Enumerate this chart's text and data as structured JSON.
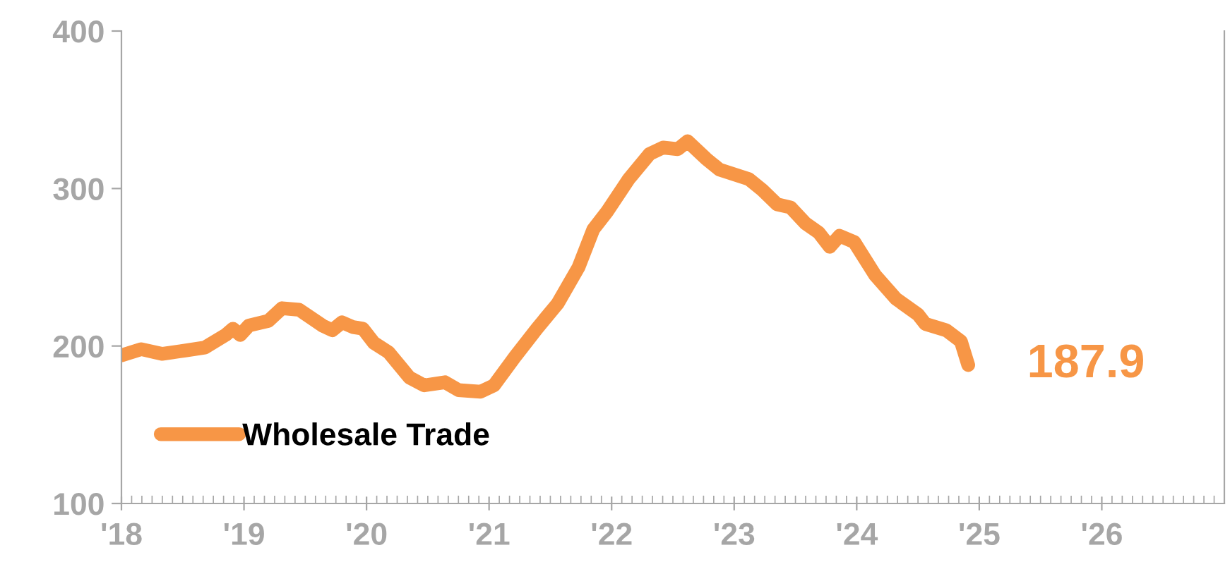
{
  "chart_data": {
    "type": "line",
    "xlim": [
      2018,
      2027
    ],
    "ylim": [
      100,
      400
    ],
    "xticks": [
      {
        "value": 2018,
        "label": "'18"
      },
      {
        "value": 2019,
        "label": "'19"
      },
      {
        "value": 2020,
        "label": "'20"
      },
      {
        "value": 2021,
        "label": "'21"
      },
      {
        "value": 2022,
        "label": "'22"
      },
      {
        "value": 2023,
        "label": "'23"
      },
      {
        "value": 2024,
        "label": "'24"
      },
      {
        "value": 2025,
        "label": "'25"
      },
      {
        "value": 2026,
        "label": "'26"
      }
    ],
    "yticks": [
      100,
      200,
      300,
      400
    ],
    "grid": false,
    "legend": "bottom left",
    "marker": "none",
    "line_style": "solid",
    "annotations": [
      {
        "text": "187.9",
        "x": 2024.91,
        "y": 187.9
      }
    ],
    "series": [
      {
        "name": "Wholesale Trade",
        "color": "#f79646",
        "x": [
          2018.0,
          2018.16,
          2018.33,
          2018.51,
          2018.68,
          2018.85,
          2018.91,
          2018.97,
          2019.04,
          2019.2,
          2019.31,
          2019.45,
          2019.64,
          2019.72,
          2019.8,
          2019.89,
          2019.97,
          2020.06,
          2020.18,
          2020.35,
          2020.47,
          2020.64,
          2020.75,
          2020.93,
          2021.04,
          2021.21,
          2021.39,
          2021.56,
          2021.73,
          2021.85,
          2021.96,
          2022.14,
          2022.31,
          2022.42,
          2022.54,
          2022.62,
          2022.77,
          2022.88,
          2023.12,
          2023.23,
          2023.35,
          2023.46,
          2023.58,
          2023.69,
          2023.78,
          2023.86,
          2023.98,
          2024.15,
          2024.32,
          2024.5,
          2024.56,
          2024.73,
          2024.85,
          2024.91
        ],
        "values": [
          194,
          198,
          195,
          197,
          199,
          207,
          211,
          207,
          213,
          216,
          224,
          223,
          213,
          210,
          215,
          212,
          211,
          202,
          196,
          180,
          175,
          177,
          172,
          171,
          175,
          193,
          211,
          227,
          250,
          274,
          285,
          306,
          322,
          326,
          325,
          330,
          319,
          312,
          306,
          299,
          290,
          288,
          278,
          272,
          263,
          270,
          266,
          245,
          230,
          220,
          214,
          210,
          203,
          187.9
        ]
      }
    ]
  }
}
